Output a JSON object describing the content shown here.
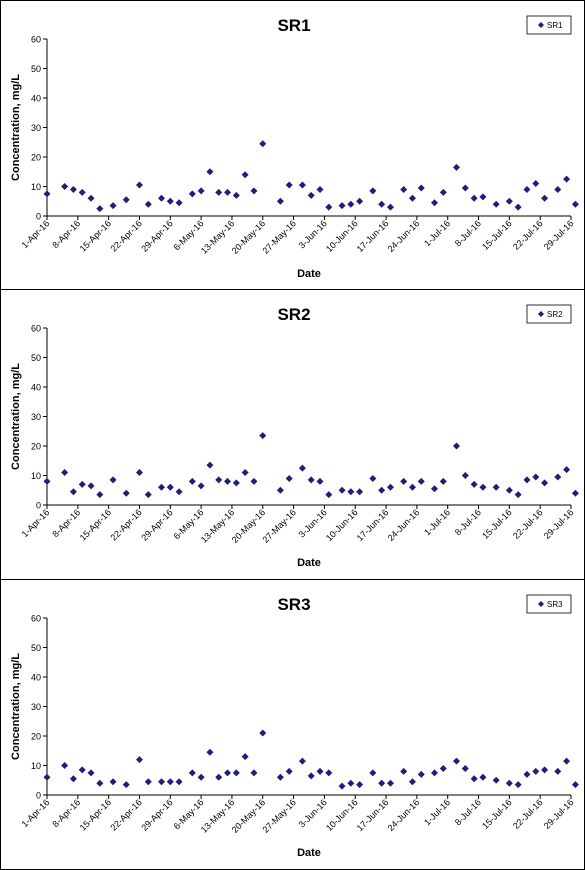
{
  "chart_data": [
    {
      "type": "scatter",
      "title": "SR1",
      "xlabel": "Date",
      "ylabel": "Concentration, mg/L",
      "ylim": [
        0,
        60
      ],
      "yticks": [
        0,
        10,
        20,
        30,
        40,
        50,
        60
      ],
      "xlim": [
        "2016-04-01",
        "2016-07-29"
      ],
      "xtick_labels": [
        "1-Apr-16",
        "8-Apr-16",
        "15-Apr-16",
        "22-Apr-16",
        "29-Apr-16",
        "6-May-16",
        "13-May-16",
        "20-May-16",
        "27-May-16",
        "3-Jun-16",
        "10-Jun-16",
        "17-Jun-16",
        "24-Jun-16",
        "1-Jul-16",
        "8-Jul-16",
        "15-Jul-16",
        "22-Jul-16",
        "29-Jul-16"
      ],
      "legend": "top-right",
      "grid": false,
      "marker_color": "#1f1f7a",
      "series": [
        {
          "name": "SR1",
          "x": [
            "2016-04-01",
            "2016-04-05",
            "2016-04-07",
            "2016-04-09",
            "2016-04-11",
            "2016-04-13",
            "2016-04-16",
            "2016-04-19",
            "2016-04-22",
            "2016-04-24",
            "2016-04-27",
            "2016-04-29",
            "2016-05-01",
            "2016-05-04",
            "2016-05-06",
            "2016-05-08",
            "2016-05-10",
            "2016-05-12",
            "2016-05-14",
            "2016-05-16",
            "2016-05-18",
            "2016-05-20",
            "2016-05-24",
            "2016-05-26",
            "2016-05-29",
            "2016-05-31",
            "2016-06-02",
            "2016-06-04",
            "2016-06-07",
            "2016-06-09",
            "2016-06-11",
            "2016-06-14",
            "2016-06-16",
            "2016-06-18",
            "2016-06-21",
            "2016-06-23",
            "2016-06-25",
            "2016-06-28",
            "2016-06-30",
            "2016-07-03",
            "2016-07-05",
            "2016-07-07",
            "2016-07-09",
            "2016-07-12",
            "2016-07-15",
            "2016-07-17",
            "2016-07-19",
            "2016-07-21",
            "2016-07-23",
            "2016-07-26",
            "2016-07-28",
            "2016-07-30"
          ],
          "y": [
            7.5,
            10,
            9,
            8,
            6,
            2.5,
            3.5,
            5.5,
            10.5,
            4,
            6,
            5,
            4.5,
            7.5,
            8.5,
            15,
            8,
            8,
            7,
            14,
            8.5,
            24.5,
            5,
            10.5,
            10.5,
            7,
            9,
            3,
            3.5,
            4,
            5,
            8.5,
            4,
            3,
            9,
            6,
            9.5,
            4.5,
            8,
            16.5,
            9.5,
            6,
            6.5,
            4,
            5,
            3,
            9,
            11,
            6,
            9,
            12.5,
            4
          ]
        }
      ]
    },
    {
      "type": "scatter",
      "title": "SR2",
      "xlabel": "Date",
      "ylabel": "Concentration, mg/L",
      "ylim": [
        0,
        60
      ],
      "yticks": [
        0,
        10,
        20,
        30,
        40,
        50,
        60
      ],
      "xlim": [
        "2016-04-01",
        "2016-07-29"
      ],
      "xtick_labels": [
        "1-Apr-16",
        "8-Apr-16",
        "15-Apr-16",
        "22-Apr-16",
        "29-Apr-16",
        "6-May-16",
        "13-May-16",
        "20-May-16",
        "27-May-16",
        "3-Jun-16",
        "10-Jun-16",
        "17-Jun-16",
        "24-Jun-16",
        "1-Jul-16",
        "8-Jul-16",
        "15-Jul-16",
        "22-Jul-16",
        "29-Jul-16"
      ],
      "legend": "top-right",
      "grid": false,
      "marker_color": "#1f1f7a",
      "series": [
        {
          "name": "SR2",
          "x": [
            "2016-04-01",
            "2016-04-05",
            "2016-04-07",
            "2016-04-09",
            "2016-04-11",
            "2016-04-13",
            "2016-04-16",
            "2016-04-19",
            "2016-04-22",
            "2016-04-24",
            "2016-04-27",
            "2016-04-29",
            "2016-05-01",
            "2016-05-04",
            "2016-05-06",
            "2016-05-08",
            "2016-05-10",
            "2016-05-12",
            "2016-05-14",
            "2016-05-16",
            "2016-05-18",
            "2016-05-20",
            "2016-05-24",
            "2016-05-26",
            "2016-05-29",
            "2016-05-31",
            "2016-06-02",
            "2016-06-04",
            "2016-06-07",
            "2016-06-09",
            "2016-06-11",
            "2016-06-14",
            "2016-06-16",
            "2016-06-18",
            "2016-06-21",
            "2016-06-23",
            "2016-06-25",
            "2016-06-28",
            "2016-06-30",
            "2016-07-03",
            "2016-07-05",
            "2016-07-07",
            "2016-07-09",
            "2016-07-12",
            "2016-07-15",
            "2016-07-17",
            "2016-07-19",
            "2016-07-21",
            "2016-07-23",
            "2016-07-26",
            "2016-07-28",
            "2016-07-30"
          ],
          "y": [
            8,
            11,
            4.5,
            7,
            6.5,
            3.5,
            8.5,
            4,
            11,
            3.5,
            6,
            6,
            4.5,
            8,
            6.5,
            13.5,
            8.5,
            8,
            7.5,
            11,
            8,
            23.5,
            5,
            9,
            12.5,
            8.5,
            8,
            3.5,
            5,
            4.5,
            4.5,
            9,
            5,
            6,
            8,
            6,
            8,
            5.5,
            8,
            20,
            10,
            7,
            6,
            6,
            5,
            3.5,
            8.5,
            9.5,
            7.5,
            9.5,
            12,
            4
          ]
        }
      ]
    },
    {
      "type": "scatter",
      "title": "SR3",
      "xlabel": "Date",
      "ylabel": "Concentration, mg/L",
      "ylim": [
        0,
        60
      ],
      "yticks": [
        0,
        10,
        20,
        30,
        40,
        50,
        60
      ],
      "xlim": [
        "2016-04-01",
        "2016-07-29"
      ],
      "xtick_labels": [
        "1-Apr-16",
        "8-Apr-16",
        "15-Apr-16",
        "22-Apr-16",
        "29-Apr-16",
        "6-May-16",
        "13-May-16",
        "20-May-16",
        "27-May-16",
        "3-Jun-16",
        "10-Jun-16",
        "17-Jun-16",
        "24-Jun-16",
        "1-Jul-16",
        "8-Jul-16",
        "15-Jul-16",
        "22-Jul-16",
        "29-Jul-16"
      ],
      "legend": "top-right",
      "grid": false,
      "marker_color": "#1f1f7a",
      "series": [
        {
          "name": "SR3",
          "x": [
            "2016-04-01",
            "2016-04-05",
            "2016-04-07",
            "2016-04-09",
            "2016-04-11",
            "2016-04-13",
            "2016-04-16",
            "2016-04-19",
            "2016-04-22",
            "2016-04-24",
            "2016-04-27",
            "2016-04-29",
            "2016-05-01",
            "2016-05-04",
            "2016-05-06",
            "2016-05-08",
            "2016-05-10",
            "2016-05-12",
            "2016-05-14",
            "2016-05-16",
            "2016-05-18",
            "2016-05-20",
            "2016-05-24",
            "2016-05-26",
            "2016-05-29",
            "2016-05-31",
            "2016-06-02",
            "2016-06-04",
            "2016-06-07",
            "2016-06-09",
            "2016-06-11",
            "2016-06-14",
            "2016-06-16",
            "2016-06-18",
            "2016-06-21",
            "2016-06-23",
            "2016-06-25",
            "2016-06-28",
            "2016-06-30",
            "2016-07-03",
            "2016-07-05",
            "2016-07-07",
            "2016-07-09",
            "2016-07-12",
            "2016-07-15",
            "2016-07-17",
            "2016-07-19",
            "2016-07-21",
            "2016-07-23",
            "2016-07-26",
            "2016-07-28",
            "2016-07-30"
          ],
          "y": [
            6,
            10,
            5.5,
            8.5,
            7.5,
            4,
            4.5,
            3.5,
            12,
            4.5,
            4.5,
            4.5,
            4.5,
            7.5,
            6,
            14.5,
            6,
            7.5,
            7.5,
            13,
            7.5,
            21,
            6,
            8,
            11.5,
            6.5,
            8,
            7.5,
            3,
            4,
            3.5,
            7.5,
            4,
            4,
            8,
            4.5,
            7,
            7.5,
            9,
            11.5,
            9,
            5.5,
            6,
            5,
            4,
            3.5,
            7,
            8,
            8.5,
            8,
            11.5,
            3.5
          ]
        }
      ]
    }
  ]
}
